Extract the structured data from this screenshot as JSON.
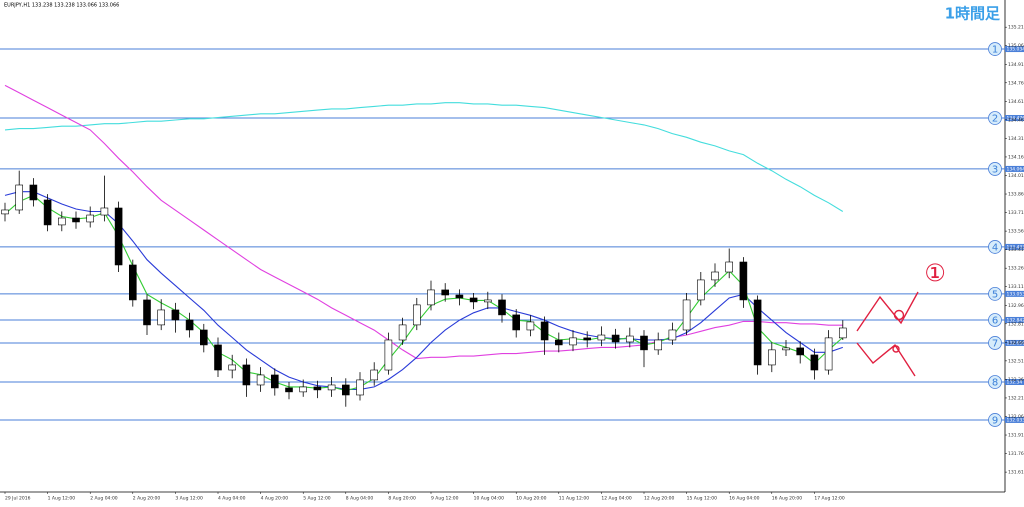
{
  "header": "EURJPY,H1  133.238 133.238 133.066 133.066",
  "timeframe_label": "1時間足",
  "annotation": "①",
  "chart_data": {
    "type": "candlestick",
    "categories": [
      "29 Jul 2016",
      null,
      null,
      "1 Aug 12:00",
      null,
      null,
      "2 Aug 04:00",
      null,
      null,
      "2 Aug 20:00",
      null,
      null,
      "3 Aug 12:00",
      null,
      null,
      "4 Aug 04:00",
      null,
      null,
      "4 Aug 20:00",
      null,
      null,
      "5 Aug 12:00",
      null,
      null,
      "8 Aug 04:00",
      null,
      null,
      "8 Aug 20:00",
      null,
      null,
      "9 Aug 12:00",
      null,
      null,
      "10 Aug 04:00",
      null,
      null,
      "10 Aug 20:00",
      null,
      null,
      "11 Aug 12:00",
      null,
      null,
      "12 Aug 04:00",
      null,
      null,
      "12 Aug 20:00",
      null,
      null,
      "15 Aug 12:00",
      null,
      null,
      "16 Aug 04:00",
      null,
      null,
      "16 Aug 20:00",
      null,
      null,
      "17 Aug 12:00",
      null,
      null
    ],
    "open": [
      133.7,
      133.732,
      133.934,
      133.813,
      133.611,
      133.667,
      133.635,
      133.691,
      133.748,
      133.287,
      133.004,
      132.802,
      132.923,
      132.842,
      132.761,
      132.64,
      132.437,
      132.478,
      132.316,
      132.397,
      132.292,
      132.26,
      132.3,
      132.276,
      132.316,
      132.235,
      132.357,
      132.437,
      132.68,
      132.802,
      132.964,
      133.085,
      133.044,
      133.02,
      132.988,
      133.004,
      132.883,
      132.761,
      132.826,
      132.68,
      132.64,
      132.697,
      132.68,
      132.72,
      132.664,
      132.712,
      132.6,
      132.68,
      132.761,
      133.004,
      133.166,
      133.23,
      133.311,
      133.004,
      132.478,
      132.6,
      132.616,
      132.559,
      132.437,
      132.697
    ],
    "high": [
      133.79,
      134.05,
      133.99,
      133.86,
      133.72,
      133.72,
      133.76,
      134.01,
      133.8,
      133.33,
      133.05,
      133.01,
      132.98,
      132.9,
      132.81,
      132.7,
      132.56,
      132.53,
      132.46,
      132.45,
      132.34,
      132.36,
      132.35,
      132.38,
      132.37,
      132.42,
      132.5,
      132.74,
      132.86,
      133.02,
      133.16,
      133.14,
      133.09,
      133.06,
      133.07,
      133.05,
      132.93,
      132.88,
      132.87,
      132.74,
      132.76,
      132.75,
      132.79,
      132.77,
      132.78,
      132.76,
      132.74,
      132.82,
      133.06,
      133.23,
      133.3,
      133.42,
      133.35,
      133.04,
      132.66,
      132.68,
      132.67,
      132.61,
      132.76,
      132.84
    ],
    "low": [
      133.64,
      133.7,
      133.76,
      133.56,
      133.56,
      133.58,
      133.59,
      133.64,
      133.23,
      132.95,
      132.72,
      132.76,
      132.74,
      132.7,
      132.58,
      132.38,
      132.37,
      132.22,
      132.26,
      132.23,
      132.2,
      132.22,
      132.21,
      132.22,
      132.14,
      132.19,
      132.31,
      132.4,
      132.64,
      132.76,
      132.92,
      132.99,
      132.96,
      132.93,
      132.93,
      132.82,
      132.7,
      132.71,
      132.56,
      132.58,
      132.59,
      132.62,
      132.63,
      132.61,
      132.62,
      132.46,
      132.56,
      132.64,
      132.72,
      132.96,
      133.11,
      133.18,
      132.94,
      132.4,
      132.42,
      132.55,
      132.49,
      132.36,
      132.4,
      132.68
    ],
    "close": [
      133.732,
      133.934,
      133.813,
      133.611,
      133.667,
      133.635,
      133.691,
      133.748,
      133.287,
      133.004,
      132.802,
      132.923,
      132.842,
      132.761,
      132.64,
      132.437,
      132.478,
      132.316,
      132.397,
      132.292,
      132.26,
      132.3,
      132.276,
      132.316,
      132.235,
      132.357,
      132.437,
      132.68,
      132.802,
      132.964,
      133.085,
      133.044,
      133.02,
      132.988,
      133.004,
      132.883,
      132.761,
      132.826,
      132.68,
      132.64,
      132.697,
      132.68,
      132.72,
      132.664,
      132.712,
      132.6,
      132.68,
      132.761,
      133.004,
      133.166,
      133.23,
      133.311,
      133.004,
      132.478,
      132.6,
      132.616,
      132.559,
      132.437,
      132.697,
      132.777
    ],
    "up_color": "#ffffff",
    "down_color": "#000000",
    "series": [
      {
        "color": "#44dddd",
        "values": [
          134.38,
          134.39,
          134.39,
          134.4,
          134.41,
          134.41,
          134.42,
          134.43,
          134.43,
          134.44,
          134.45,
          134.45,
          134.46,
          134.47,
          134.47,
          134.48,
          134.49,
          134.5,
          134.51,
          134.51,
          134.52,
          134.53,
          134.54,
          134.55,
          134.55,
          134.56,
          134.57,
          134.58,
          134.58,
          134.59,
          134.59,
          134.6,
          134.6,
          134.59,
          134.59,
          134.58,
          134.58,
          134.57,
          134.56,
          134.54,
          134.52,
          134.5,
          134.48,
          134.46,
          134.44,
          134.42,
          134.39,
          134.35,
          134.32,
          134.28,
          134.25,
          134.21,
          134.18,
          134.11,
          134.05,
          133.98,
          133.92,
          133.85,
          133.79,
          133.72
        ]
      },
      {
        "color": "#e040e0",
        "values": [
          134.74,
          134.68,
          134.62,
          134.56,
          134.5,
          134.44,
          134.38,
          134.27,
          134.15,
          134.04,
          133.92,
          133.81,
          133.73,
          133.65,
          133.57,
          133.49,
          133.41,
          133.33,
          133.25,
          133.19,
          133.13,
          133.07,
          133.01,
          132.94,
          132.88,
          132.82,
          132.76,
          132.68,
          132.6,
          132.53,
          132.54,
          132.54,
          132.55,
          132.55,
          132.56,
          132.57,
          132.57,
          132.58,
          132.59,
          132.59,
          132.6,
          132.61,
          132.62,
          132.62,
          132.63,
          132.64,
          132.67,
          132.7,
          132.72,
          132.75,
          132.78,
          132.8,
          132.83,
          132.83,
          132.82,
          132.82,
          132.81,
          132.81,
          132.8,
          132.8
        ]
      },
      {
        "color": "#2a3bd8",
        "values": [
          133.85,
          133.88,
          133.88,
          133.83,
          133.78,
          133.74,
          133.72,
          133.72,
          133.62,
          133.48,
          133.33,
          133.22,
          133.12,
          133.02,
          132.92,
          132.8,
          132.7,
          132.6,
          132.52,
          132.44,
          132.38,
          132.34,
          132.31,
          132.3,
          132.28,
          132.28,
          132.3,
          132.36,
          132.44,
          132.54,
          132.66,
          132.76,
          132.84,
          132.9,
          132.94,
          132.94,
          132.91,
          132.88,
          132.84,
          132.79,
          132.75,
          132.72,
          132.7,
          132.69,
          132.69,
          132.68,
          132.68,
          132.69,
          132.74,
          132.82,
          132.92,
          133.02,
          133.05,
          132.94,
          132.84,
          132.74,
          132.66,
          132.58,
          132.58,
          132.62
        ]
      },
      {
        "color": "#33cc33",
        "values": [
          133.7,
          133.8,
          133.85,
          133.75,
          133.68,
          133.66,
          133.67,
          133.71,
          133.52,
          133.28,
          133.05,
          132.98,
          132.92,
          132.84,
          132.74,
          132.58,
          132.52,
          132.42,
          132.4,
          132.34,
          132.3,
          132.3,
          132.29,
          132.3,
          132.27,
          132.3,
          132.37,
          132.52,
          132.66,
          132.82,
          132.96,
          133.01,
          133.02,
          133.0,
          133.0,
          132.93,
          132.84,
          132.83,
          132.74,
          132.68,
          132.69,
          132.68,
          132.7,
          132.68,
          132.7,
          132.64,
          132.66,
          132.71,
          132.86,
          133.02,
          133.13,
          133.24,
          133.12,
          132.78,
          132.66,
          132.62,
          132.58,
          132.49,
          132.6,
          132.7
        ]
      }
    ],
    "level_color": "#4a7fd8",
    "levels": [
      {
        "label": "1",
        "value": 135.034
      },
      {
        "label": "2",
        "value": 134.476
      },
      {
        "label": "3",
        "value": 134.064
      },
      {
        "label": "4",
        "value": 133.433
      },
      {
        "label": "5",
        "value": 133.053
      },
      {
        "label": "6",
        "value": 132.842
      },
      {
        "label": "7",
        "value": 132.656
      },
      {
        "label": "8",
        "value": 132.34
      },
      {
        "label": "9",
        "value": 132.033
      }
    ],
    "ylim": [
      131.45,
      135.35
    ],
    "yticks": [
      135.211,
      135.061,
      134.911,
      134.761,
      134.611,
      134.461,
      134.311,
      134.161,
      134.011,
      133.861,
      133.711,
      133.561,
      133.411,
      133.261,
      133.111,
      132.961,
      132.811,
      132.661,
      132.511,
      132.361,
      132.211,
      132.061,
      131.911,
      131.761,
      131.611
    ]
  }
}
